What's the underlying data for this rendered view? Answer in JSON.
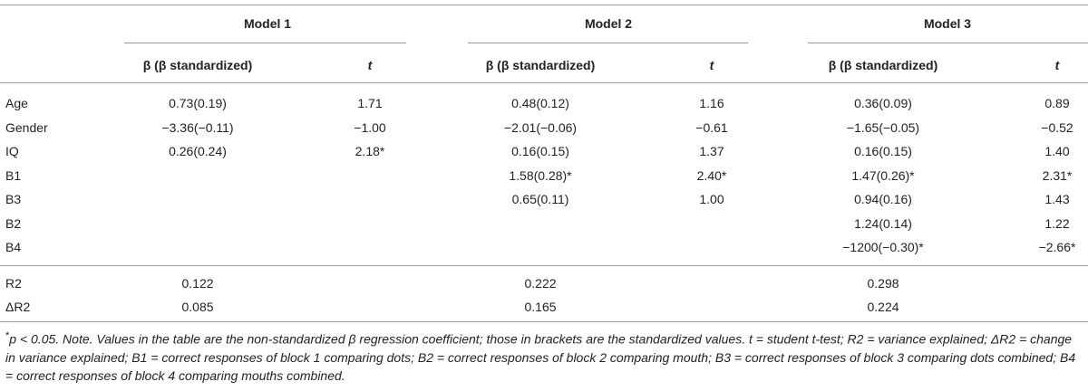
{
  "table": {
    "models": [
      "Model 1",
      "Model 2",
      "Model 3"
    ],
    "beta_header": "β (β standardized)",
    "t_header": "t",
    "rows": [
      {
        "label": "Age",
        "m1_b": "0.73(0.19)",
        "m1_t": "1.71",
        "m2_b": "0.48(0.12)",
        "m2_t": "1.16",
        "m3_b": "0.36(0.09)",
        "m3_t": "0.89"
      },
      {
        "label": "Gender",
        "m1_b": "−3.36(−0.11)",
        "m1_t": "−1.00",
        "m2_b": "−2.01(−0.06)",
        "m2_t": "−0.61",
        "m3_b": "−1.65(−0.05)",
        "m3_t": "−0.52"
      },
      {
        "label": "IQ",
        "m1_b": "0.26(0.24)",
        "m1_t": "2.18*",
        "m2_b": "0.16(0.15)",
        "m2_t": "1.37",
        "m3_b": "0.16(0.15)",
        "m3_t": "1.40"
      },
      {
        "label": "B1",
        "m1_b": "",
        "m1_t": "",
        "m2_b": "1.58(0.28)*",
        "m2_t": "2.40*",
        "m3_b": "1.47(0.26)*",
        "m3_t": "2.31*"
      },
      {
        "label": "B3",
        "m1_b": "",
        "m1_t": "",
        "m2_b": "0.65(0.11)",
        "m2_t": "1.00",
        "m3_b": "0.94(0.16)",
        "m3_t": "1.43"
      },
      {
        "label": "B2",
        "m1_b": "",
        "m1_t": "",
        "m2_b": "",
        "m2_t": "",
        "m3_b": "1.24(0.14)",
        "m3_t": "1.22"
      },
      {
        "label": "B4",
        "m1_b": "",
        "m1_t": "",
        "m2_b": "",
        "m2_t": "",
        "m3_b": "−1200(−0.30)*",
        "m3_t": "−2.66*"
      }
    ],
    "summary": [
      {
        "label": "R2",
        "m1": "0.122",
        "m2": "0.222",
        "m3": "0.298"
      },
      {
        "label": "ΔR2",
        "m1": "0.085",
        "m2": "0.165",
        "m3": "0.224"
      }
    ]
  },
  "footnote": {
    "marker": "*",
    "text": "p < 0.05. Note. Values in the table are the non-standardized β regression coefficient; those in brackets are the standardized values. t = student t-test; R2 = variance explained; ΔR2 = change in variance explained; B1 = correct responses of block 1 comparing dots; B2 = correct responses of block 2 comparing mouth; B3 = correct responses of block 3 comparing dots combined; B4 = correct responses of block 4 comparing mouths combined."
  }
}
